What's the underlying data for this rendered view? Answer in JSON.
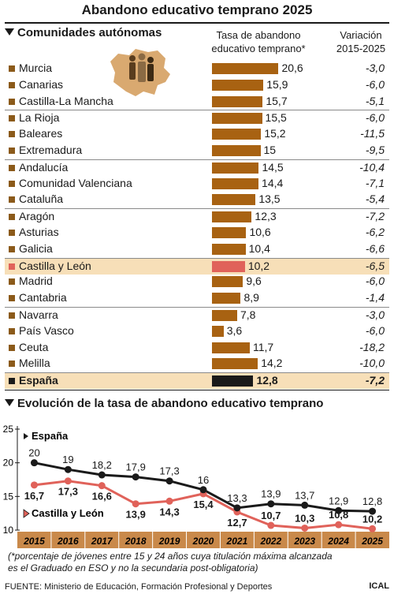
{
  "title": "Abandono educativo temprano 2025",
  "section1_title": "Comunidades autónomas",
  "col_rate_header_1": "Tasa de abandono",
  "col_rate_header_2": "educativo temprano*",
  "col_var_header_1": "Variación",
  "col_var_header_2": "2015-2025",
  "section2_title": "Evolución de la tasa de abandono educativo temprano",
  "note_1": "(*porcentaje de jóvenes entre 15 y 24 años cuya titulación máxima alcanzada",
  "note_2": "es el Graduado en ESO y no la secundaria post-obligatoria)",
  "source": "FUENTE: Ministerio de Educación, Formación Profesional y Deportes",
  "brand": "ICAL",
  "colors": {
    "bar": "#a86212",
    "highlight_bar": "#e0625a",
    "total_bar": "#1a1a1a",
    "highlight_row": "#f7dfb8",
    "spain_line": "#1a1a1a",
    "cyl_line": "#e0625a",
    "year_band": "#c9894a"
  },
  "chart_data": [
    {
      "type": "bar",
      "title": "Comunidades autónomas",
      "categories": [
        "Murcia",
        "Canarias",
        "Castilla-La Mancha",
        "La Rioja",
        "Baleares",
        "Extremadura",
        "Andalucía",
        "Comunidad Valenciana",
        "Cataluña",
        "Aragón",
        "Asturias",
        "Galicia",
        "Castilla y León",
        "Madrid",
        "Cantabria",
        "Navarra",
        "País Vasco",
        "Ceuta",
        "Melilla",
        "España"
      ],
      "series": [
        {
          "name": "Tasa de abandono educativo temprano*",
          "values": [
            20.6,
            15.9,
            15.7,
            15.5,
            15.2,
            15,
            14.5,
            14.4,
            13.5,
            12.3,
            10.6,
            10.4,
            10.2,
            9.6,
            8.9,
            7.8,
            3.6,
            11.7,
            14.2,
            12.8
          ],
          "labels": [
            "20,6",
            "15,9",
            "15,7",
            "15,5",
            "15,2",
            "15",
            "14,5",
            "14,4",
            "13,5",
            "12,3",
            "10,6",
            "10,4",
            "10,2",
            "9,6",
            "8,9",
            "7,8",
            "3,6",
            "11,7",
            "14,2",
            "12,8"
          ]
        },
        {
          "name": "Variación 2015-2025",
          "values": [
            -3.0,
            -6.0,
            -5.1,
            -6.0,
            -11.5,
            -9.5,
            -10.4,
            -7.1,
            -5.4,
            -7.2,
            -6.2,
            -6.6,
            -6.5,
            -6.0,
            -1.4,
            -3.0,
            -6.0,
            -18.2,
            -10.0,
            -7.2
          ],
          "labels": [
            "-3,0",
            "-6,0",
            "-5,1",
            "-6,0",
            "-11,5",
            "-9,5",
            "-10,4",
            "-7,1",
            "-5,4",
            "-7,2",
            "-6,2",
            "-6,6",
            "-6,5",
            "-6,0",
            "-1,4",
            "-3,0",
            "-6,0",
            "-18,2",
            "-10,0",
            "-7,2"
          ]
        }
      ],
      "highlight": "Castilla y León",
      "total": "España"
    },
    {
      "type": "line",
      "title": "Evolución de la tasa de abandono educativo temprano",
      "x": [
        "2015",
        "2016",
        "2017",
        "2018",
        "2019",
        "2020",
        "2021",
        "2022",
        "2023",
        "2024",
        "2025"
      ],
      "ylim": [
        10,
        25
      ],
      "yticks": [
        "10",
        "15",
        "20",
        "25"
      ],
      "grid": false,
      "series": [
        {
          "name": "España",
          "values": [
            20,
            19,
            18.2,
            17.9,
            17.3,
            16,
            13.3,
            13.9,
            13.7,
            12.9,
            12.8
          ],
          "labels": [
            "20",
            "19",
            "18,2",
            "17,9",
            "17,3",
            "16",
            "13,3",
            "13,9",
            "13,7",
            "12,9",
            "12,8"
          ]
        },
        {
          "name": "Castilla y León",
          "values": [
            16.7,
            17.3,
            16.6,
            13.9,
            14.3,
            15.4,
            12.7,
            10.7,
            10.3,
            10.8,
            10.2
          ],
          "labels": [
            "16,7",
            "17,3",
            "16,6",
            "13,9",
            "14,3",
            "15,4",
            "12,7",
            "10,7",
            "10,3",
            "10,8",
            "10,2"
          ]
        }
      ]
    }
  ]
}
